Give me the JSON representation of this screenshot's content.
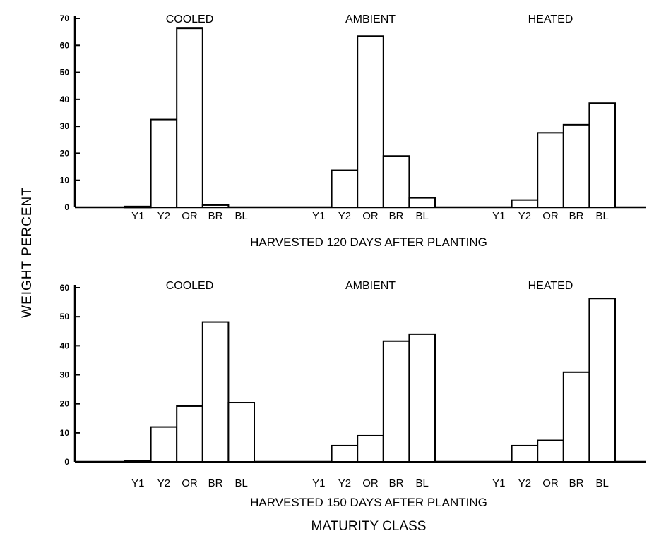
{
  "figure": {
    "ylabel": "WEIGHT PERCENT",
    "xlabel": "MATURITY CLASS"
  },
  "chart_data": [
    {
      "type": "bar",
      "caption": "HARVESTED 120 DAYS AFTER PLANTING",
      "categories": [
        "Y1",
        "Y2",
        "OR",
        "BR",
        "BL"
      ],
      "ylim": [
        0,
        70
      ],
      "yticks": [
        0,
        10,
        20,
        30,
        40,
        50,
        60,
        70
      ],
      "groups": [
        {
          "name": "COOLED",
          "values": [
            0.3,
            32.5,
            66.3,
            0.8,
            0
          ]
        },
        {
          "name": "AMBIENT",
          "values": [
            0,
            13.7,
            63.4,
            19.0,
            3.5
          ]
        },
        {
          "name": "HEATED",
          "values": [
            0,
            2.7,
            27.6,
            30.6,
            38.6
          ]
        }
      ]
    },
    {
      "type": "bar",
      "caption": "HARVESTED 150 DAYS AFTER PLANTING",
      "categories": [
        "Y1",
        "Y2",
        "OR",
        "BR",
        "BL"
      ],
      "ylim": [
        0,
        60
      ],
      "yticks": [
        0,
        10,
        20,
        30,
        40,
        50,
        60
      ],
      "groups": [
        {
          "name": "COOLED",
          "values": [
            0.3,
            12.0,
            19.2,
            48.2,
            20.4
          ]
        },
        {
          "name": "AMBIENT",
          "values": [
            0,
            5.6,
            9.0,
            41.6,
            44.0
          ]
        },
        {
          "name": "HEATED",
          "values": [
            0,
            5.6,
            7.4,
            30.9,
            56.3
          ]
        }
      ]
    }
  ]
}
